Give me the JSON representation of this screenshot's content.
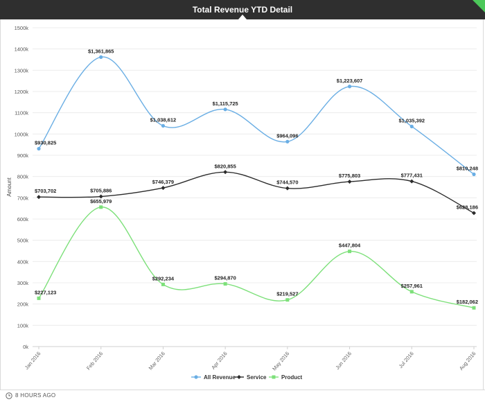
{
  "header": {
    "title": "Total Revenue YTD Detail"
  },
  "footer": {
    "updated": "8 HOURS AGO"
  },
  "colors": {
    "all_revenue": "#6aaee4",
    "service": "#2b2b2b",
    "product": "#7de07a",
    "header_bg": "#2f2f2f",
    "corner_accent": "#4cc85a"
  },
  "chart_data": {
    "type": "line",
    "title": "Total Revenue YTD Detail",
    "xlabel": "",
    "ylabel": "Amount",
    "ylim": [
      0,
      1500000
    ],
    "yticks": [
      0,
      100000,
      200000,
      300000,
      400000,
      500000,
      600000,
      700000,
      800000,
      900000,
      1000000,
      1100000,
      1200000,
      1300000,
      1400000,
      1500000
    ],
    "ytick_labels": [
      "0k",
      "100k",
      "200k",
      "300k",
      "400k",
      "500k",
      "600k",
      "700k",
      "800k",
      "900k",
      "1000k",
      "1100k",
      "1200k",
      "1300k",
      "1400k",
      "1500k"
    ],
    "categories": [
      "Jan 2016",
      "Feb 2016",
      "Mar 2016",
      "Apr 2016",
      "May 2016",
      "Jun 2016",
      "Jul 2016",
      "Aug 2016"
    ],
    "grid": true,
    "legend_position": "bottom-center",
    "series": [
      {
        "name": "All Revenue",
        "color": "#6aaee4",
        "marker": "circle",
        "values": [
          930825,
          1361865,
          1038612,
          1115725,
          964096,
          1223607,
          1035392,
          810248
        ],
        "labels": [
          "$930,825",
          "$1,361,865",
          "$1,038,612",
          "$1,115,725",
          "$964,096",
          "$1,223,607",
          "$1,035,392",
          "$810,248"
        ]
      },
      {
        "name": "Service",
        "color": "#2b2b2b",
        "marker": "diamond",
        "values": [
          703702,
          705886,
          746379,
          820855,
          744570,
          775803,
          777431,
          628186
        ],
        "labels": [
          "$703,702",
          "$705,886",
          "$746,379",
          "$820,855",
          "$744,570",
          "$775,803",
          "$777,431",
          "$628,186"
        ]
      },
      {
        "name": "Product",
        "color": "#7de07a",
        "marker": "square",
        "values": [
          227123,
          655979,
          292234,
          294870,
          219527,
          447804,
          257961,
          182062
        ],
        "labels": [
          "$227,123",
          "$655,979",
          "$292,234",
          "$294,870",
          "$219,527",
          "$447,804",
          "$257,961",
          "$182,062"
        ]
      }
    ]
  }
}
